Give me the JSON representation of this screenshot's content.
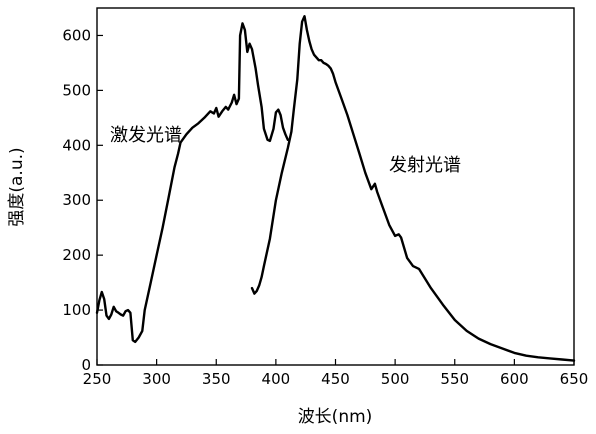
{
  "chart_data": {
    "type": "line",
    "xlabel": "波长(nm)",
    "ylabel": "强度(a.u.)",
    "xlim": [
      250,
      650
    ],
    "ylim": [
      0,
      650
    ],
    "xticks": [
      250,
      300,
      350,
      400,
      450,
      500,
      550,
      600,
      650
    ],
    "yticks": [
      0,
      100,
      200,
      300,
      400,
      500,
      600
    ],
    "grid": false,
    "legend": "none",
    "annotations": [
      {
        "text": "激发光谱",
        "series": 0
      },
      {
        "text": "发射光谱",
        "series": 1
      }
    ],
    "series": [
      {
        "x": [
          250,
          252,
          254,
          256,
          258,
          260,
          262,
          264,
          266,
          268,
          270,
          272,
          274,
          276,
          278,
          280,
          282,
          285,
          288,
          290,
          295,
          300,
          305,
          310,
          315,
          318,
          320,
          325,
          330,
          335,
          340,
          345,
          348,
          350,
          352,
          355,
          358,
          360,
          363,
          365,
          367,
          369,
          370,
          372,
          374,
          376,
          378,
          380,
          383,
          385,
          388,
          390,
          393,
          395,
          398,
          400,
          402,
          404,
          406,
          408,
          410
        ],
        "y": [
          95,
          118,
          133,
          120,
          90,
          84,
          92,
          106,
          98,
          95,
          92,
          90,
          98,
          100,
          95,
          45,
          42,
          50,
          62,
          100,
          150,
          200,
          250,
          305,
          360,
          385,
          405,
          420,
          432,
          440,
          450,
          462,
          458,
          468,
          452,
          462,
          470,
          465,
          478,
          492,
          475,
          485,
          600,
          622,
          610,
          570,
          585,
          575,
          540,
          510,
          470,
          430,
          410,
          408,
          430,
          460,
          465,
          455,
          432,
          420,
          410
        ]
      },
      {
        "x": [
          380,
          382,
          384,
          386,
          388,
          390,
          395,
          400,
          405,
          410,
          413,
          415,
          418,
          420,
          422,
          424,
          426,
          428,
          430,
          432,
          434,
          436,
          438,
          440,
          442,
          444,
          446,
          448,
          450,
          455,
          460,
          465,
          470,
          475,
          480,
          483,
          485,
          490,
          495,
          500,
          503,
          505,
          510,
          515,
          520,
          530,
          540,
          550,
          560,
          570,
          580,
          590,
          600,
          610,
          620,
          630,
          640,
          650
        ],
        "y": [
          140,
          130,
          135,
          145,
          160,
          180,
          230,
          300,
          350,
          395,
          425,
          465,
          520,
          585,
          625,
          635,
          610,
          590,
          575,
          565,
          560,
          555,
          555,
          550,
          548,
          545,
          540,
          530,
          515,
          485,
          455,
          420,
          385,
          350,
          320,
          330,
          315,
          285,
          255,
          235,
          238,
          232,
          195,
          180,
          175,
          140,
          110,
          82,
          62,
          48,
          38,
          30,
          22,
          17,
          14,
          12,
          10,
          8
        ]
      }
    ]
  }
}
